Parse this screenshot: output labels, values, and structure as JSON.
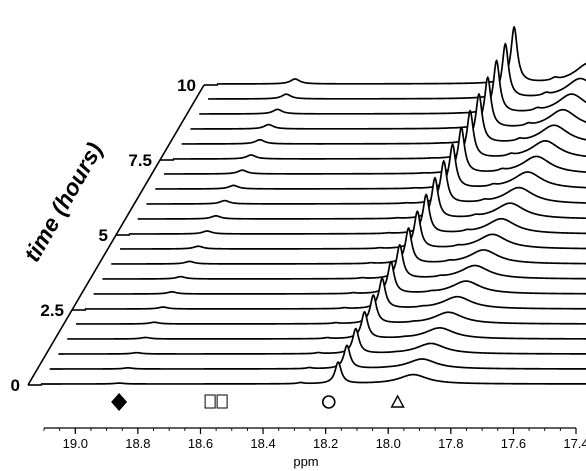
{
  "chart_data": {
    "type": "waterfall-line",
    "xlabel": "ppm",
    "ylabel": "time (hours)",
    "x_axis": {
      "min": 19.1,
      "max": 17.4,
      "reversed": true,
      "ticks": [
        "19.0",
        "18.8",
        "18.6",
        "18.4",
        "18.2",
        "18.0",
        "17.8",
        "17.6",
        "17.4"
      ],
      "tick_values": [
        19.0,
        18.8,
        18.6,
        18.4,
        18.2,
        18.0,
        17.8,
        17.6,
        17.4
      ]
    },
    "time_axis": {
      "min": 0,
      "max": 10,
      "ticks": [
        "0",
        "2.5",
        "5",
        "7.5",
        "10"
      ],
      "tick_values": [
        0,
        2.5,
        5,
        7.5,
        10
      ]
    },
    "n_traces": 21,
    "time_step_hours": 0.5,
    "peaks": [
      {
        "name": "diamond",
        "ppm": 18.86,
        "height_start": 0.08,
        "height_end": 0.45,
        "width": 0.018
      },
      {
        "name": "square",
        "ppm": 18.55,
        "height_start": 0.0,
        "height_end": 0.0,
        "width": 0.02
      },
      {
        "name": "small-18.3",
        "ppm": 18.28,
        "height_start": 0.1,
        "height_end": 0.0,
        "width": 0.012
      },
      {
        "name": "circle",
        "ppm": 18.16,
        "height_start": 1.95,
        "height_end": 5.1,
        "width": 0.012
      },
      {
        "name": "small-18.0",
        "ppm": 18.03,
        "height_start": 0.0,
        "height_end": 0.22,
        "width": 0.012
      },
      {
        "name": "triangle",
        "ppm": 17.92,
        "height_start": 0.85,
        "height_end": 1.9,
        "width": 0.055
      }
    ],
    "legend": [
      {
        "marker": "diamond",
        "ppm": 18.86,
        "color": "#000000"
      },
      {
        "marker": "square-pair",
        "ppm": 18.55,
        "color": "#000000"
      },
      {
        "marker": "circle",
        "ppm": 18.19,
        "color": "#000000"
      },
      {
        "marker": "triangle",
        "ppm": 17.97,
        "color": "#000000"
      }
    ],
    "grid": false
  }
}
